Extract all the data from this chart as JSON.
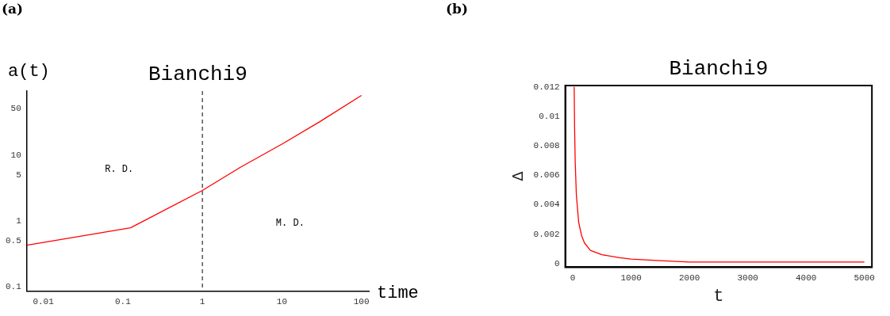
{
  "chart_data": [
    {
      "type": "line",
      "title": "Bianchi9",
      "xlabel": "time",
      "ylabel": "a(t)",
      "log": "xy",
      "xlim": [
        0.0062,
        124
      ],
      "ylim": [
        0.086,
        93
      ],
      "xticks": [
        0.01,
        0.1,
        1,
        10,
        100
      ],
      "yticks": [
        0.1,
        0.5,
        1,
        5,
        10,
        50
      ],
      "grid": false,
      "legend": false,
      "marker": "none",
      "series": [
        {
          "color": "#ff0000",
          "x": [
            0.0062,
            0.125,
            1,
            3,
            10,
            30,
            100
          ],
          "values": [
            0.43,
            0.79,
            2.9,
            6.5,
            14.6,
            32,
            80
          ]
        }
      ],
      "ref_lines": [
        {
          "axis": "x",
          "value": 1,
          "line_style": "dashed",
          "color": "#000000"
        }
      ],
      "annotations": [
        "(a)",
        "R. D.",
        "M. D."
      ]
    },
    {
      "type": "line",
      "title": "Bianchi9",
      "xlabel": "t",
      "ylabel": "Δ",
      "xlim": [
        -130,
        5130
      ],
      "ylim": [
        -0.00025,
        0.0121
      ],
      "xticks": [
        0,
        1000,
        2000,
        3000,
        4000,
        5000
      ],
      "yticks": [
        0,
        0.002,
        0.004,
        0.006,
        0.008,
        0.01,
        0.012
      ],
      "grid": false,
      "legend": false,
      "marker": "none",
      "series": [
        {
          "color": "#ff0000",
          "x": [
            23,
            30,
            40,
            60,
            100,
            150,
            200,
            300,
            500,
            800,
            1000,
            1500,
            2000,
            3000,
            4000,
            5000
          ],
          "values": [
            0.012,
            0.0093,
            0.007,
            0.0047,
            0.0028,
            0.0019,
            0.0014,
            0.0009,
            0.0006,
            0.0004,
            0.0003,
            0.0002,
            0.0001,
            0.0001,
            0.0001,
            0.0001
          ]
        }
      ],
      "annotations": [
        "(b)"
      ]
    }
  ]
}
